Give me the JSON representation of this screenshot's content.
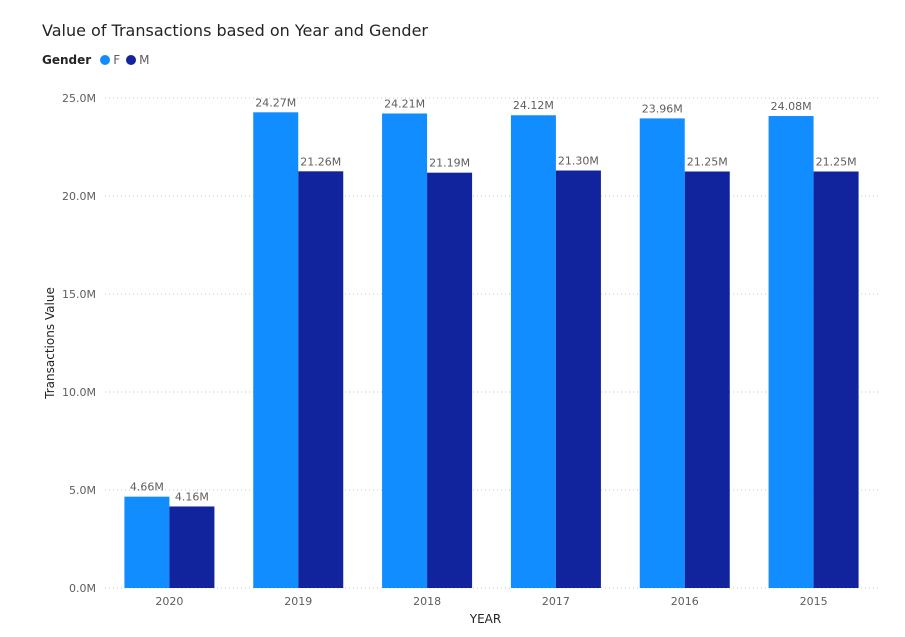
{
  "title": "Value of Transactions based on Year and Gender",
  "legend": {
    "title": "Gender",
    "items": [
      {
        "label": "F",
        "color": "#118DFF"
      },
      {
        "label": "M",
        "color": "#12239E"
      }
    ]
  },
  "chart_data": {
    "type": "bar",
    "title": "Value of Transactions based on Year and Gender",
    "xlabel": "YEAR",
    "ylabel": "Transactions Value",
    "categories": [
      "2020",
      "2019",
      "2018",
      "2017",
      "2016",
      "2015"
    ],
    "series": [
      {
        "name": "F",
        "color": "#118DFF",
        "values": [
          4.66,
          24.27,
          24.21,
          24.12,
          23.96,
          24.08
        ],
        "labels": [
          "4.66M",
          "24.27M",
          "24.21M",
          "24.12M",
          "23.96M",
          "24.08M"
        ]
      },
      {
        "name": "M",
        "color": "#12239E",
        "values": [
          4.16,
          21.26,
          21.19,
          21.3,
          21.25,
          21.25
        ],
        "labels": [
          "4.16M",
          "21.26M",
          "21.19M",
          "21.30M",
          "21.25M",
          "21.25M"
        ]
      }
    ],
    "yticks": [
      "0.0M",
      "5.0M",
      "10.0M",
      "15.0M",
      "20.0M",
      "25.0M"
    ],
    "ylim": [
      0,
      25
    ],
    "grid": true,
    "legend_position": "top-left"
  }
}
